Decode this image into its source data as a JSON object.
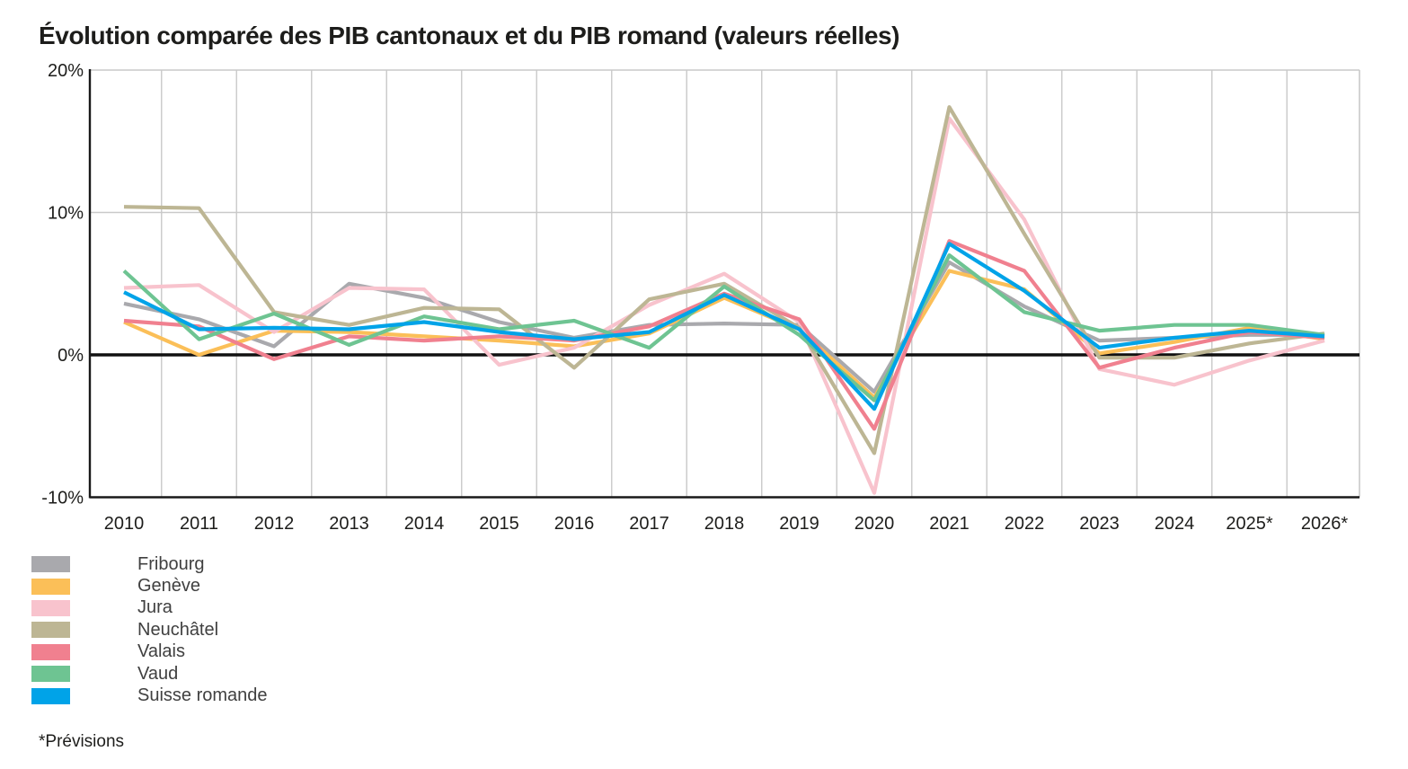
{
  "title": "Évolution comparée des PIB cantonaux et du PIB romand (valeurs réelles)",
  "footnote": "*Prévisions",
  "colors": {
    "axis": "#1a1a1a",
    "grid": "#c9c9c9",
    "zero_line": "#111111",
    "text": "#1d1d1b",
    "legend_text": "#404040"
  },
  "chart_data": {
    "type": "line",
    "title": "Évolution comparée des PIB cantonaux et du PIB romand (valeurs réelles)",
    "xlabel": "",
    "ylabel": "",
    "categories": [
      "2010",
      "2011",
      "2012",
      "2013",
      "2014",
      "2015",
      "2016",
      "2017",
      "2018",
      "2019",
      "2020",
      "2021",
      "2022",
      "2023",
      "2024",
      "2025*",
      "2026*"
    ],
    "y_tick_values": [
      20,
      10,
      0,
      -10
    ],
    "y_tick_labels": [
      "20%",
      "10%",
      "0%",
      "-10%"
    ],
    "ylim": [
      -10,
      20
    ],
    "grid": "light vertical lines between categories; horizontal lines at y ticks; bold black line at 0%",
    "legend_position": "bottom-left",
    "units": "percent",
    "series": [
      {
        "name": "Fribourg",
        "color": "#a9a9ad",
        "values": [
          3.6,
          2.5,
          0.6,
          5.0,
          4.0,
          2.3,
          1.2,
          2.1,
          2.2,
          2.1,
          -2.6,
          6.5,
          3.4,
          1.0,
          1.2,
          1.4,
          1.4
        ]
      },
      {
        "name": "Genève",
        "color": "#fbbf58",
        "values": [
          2.3,
          0.0,
          1.7,
          1.6,
          1.3,
          1.0,
          0.6,
          1.5,
          4.0,
          1.8,
          -3.0,
          5.9,
          4.6,
          0.1,
          0.9,
          1.9,
          1.1
        ]
      },
      {
        "name": "Jura",
        "color": "#f8c3cd",
        "values": [
          4.7,
          4.9,
          1.6,
          4.7,
          4.6,
          -0.7,
          0.5,
          3.5,
          5.7,
          2.3,
          -9.7,
          16.6,
          9.5,
          -1.0,
          -2.1,
          -0.4,
          1.0
        ]
      },
      {
        "name": "Neuchâtel",
        "color": "#bdb694",
        "values": [
          10.4,
          10.3,
          3.0,
          2.1,
          3.3,
          3.2,
          -0.9,
          3.9,
          5.0,
          1.9,
          -6.9,
          17.4,
          8.5,
          -0.2,
          -0.2,
          0.8,
          1.5
        ]
      },
      {
        "name": "Valais",
        "color": "#f0808f",
        "values": [
          2.4,
          2.0,
          -0.3,
          1.3,
          1.0,
          1.3,
          1.0,
          2.0,
          4.3,
          2.5,
          -5.2,
          8.0,
          5.9,
          -0.9,
          0.5,
          1.6,
          1.2
        ]
      },
      {
        "name": "Vaud",
        "color": "#6ec492",
        "values": [
          5.9,
          1.1,
          2.9,
          0.7,
          2.7,
          1.8,
          2.4,
          0.5,
          4.8,
          1.4,
          -3.2,
          7.0,
          3.0,
          1.7,
          2.1,
          2.1,
          1.4
        ]
      },
      {
        "name": "Suisse romande",
        "color": "#00a3e8",
        "values": [
          4.4,
          1.8,
          1.9,
          1.8,
          2.3,
          1.6,
          1.1,
          1.6,
          4.2,
          1.8,
          -3.8,
          7.8,
          4.5,
          0.5,
          1.2,
          1.7,
          1.3
        ]
      }
    ]
  }
}
